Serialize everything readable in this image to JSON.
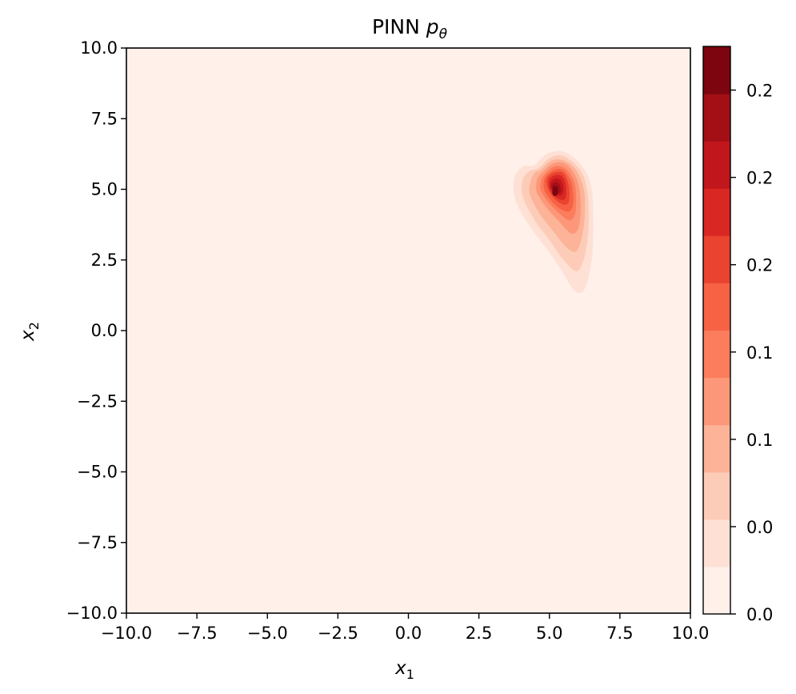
{
  "chart_data": {
    "type": "contour",
    "title": {
      "text": "PINN ",
      "symbol": "p",
      "subscript": "θ"
    },
    "xlabel": {
      "symbol": "x",
      "subscript": "1"
    },
    "ylabel": {
      "symbol": "x",
      "subscript": "2"
    },
    "xlim": [
      -10,
      10
    ],
    "ylim": [
      -10,
      10
    ],
    "xticks": [
      "−10.0",
      "−7.5",
      "−5.0",
      "−2.5",
      "0.0",
      "2.5",
      "5.0",
      "7.5",
      "10.0"
    ],
    "yticks": [
      "−10.0",
      "−7.5",
      "−5.0",
      "−2.5",
      "0.0",
      "2.5",
      "5.0",
      "7.5",
      "10.0"
    ],
    "colormap": "Reds",
    "peak": {
      "x1": 5.2,
      "x2": 4.9
    },
    "colorbar": {
      "range": [
        0,
        0.26
      ],
      "tick_labels": [
        "0.0",
        "0.0",
        "0.1",
        "0.1",
        "0.2",
        "0.2",
        "0.2"
      ],
      "levels": [
        "#fff0ea",
        "#fee1d4",
        "#fdccb8",
        "#fcb398",
        "#fc9879",
        "#fb7d5d",
        "#f66243",
        "#ea4430",
        "#d92723",
        "#c0161c",
        "#a40f16",
        "#7c0510"
      ]
    },
    "contours": [
      {
        "level": 1,
        "points": [
          [
            4.45,
            5.85
          ],
          [
            4.9,
            6.25
          ],
          [
            5.4,
            6.35
          ],
          [
            5.9,
            6.1
          ],
          [
            6.3,
            5.6
          ],
          [
            6.5,
            5.0
          ],
          [
            6.55,
            4.2
          ],
          [
            6.55,
            3.3
          ],
          [
            6.5,
            2.5
          ],
          [
            6.35,
            1.75
          ],
          [
            6.15,
            1.35
          ],
          [
            5.85,
            1.45
          ],
          [
            5.45,
            2.1
          ],
          [
            4.9,
            2.9
          ],
          [
            4.3,
            3.7
          ],
          [
            3.8,
            4.6
          ],
          [
            3.75,
            5.4
          ],
          [
            4.05,
            5.8
          ]
        ]
      },
      {
        "level": 2,
        "points": [
          [
            4.6,
            5.75
          ],
          [
            5.0,
            6.1
          ],
          [
            5.4,
            6.2
          ],
          [
            5.85,
            5.95
          ],
          [
            6.2,
            5.5
          ],
          [
            6.35,
            4.9
          ],
          [
            6.4,
            4.1
          ],
          [
            6.35,
            3.2
          ],
          [
            6.2,
            2.45
          ],
          [
            5.95,
            2.1
          ],
          [
            5.5,
            2.5
          ],
          [
            5.0,
            3.2
          ],
          [
            4.45,
            3.95
          ],
          [
            4.05,
            4.75
          ],
          [
            4.05,
            5.35
          ],
          [
            4.3,
            5.65
          ]
        ]
      },
      {
        "level": 3,
        "points": [
          [
            4.7,
            5.7
          ],
          [
            5.05,
            6.0
          ],
          [
            5.4,
            6.05
          ],
          [
            5.8,
            5.85
          ],
          [
            6.1,
            5.4
          ],
          [
            6.25,
            4.8
          ],
          [
            6.25,
            4.0
          ],
          [
            6.15,
            3.3
          ],
          [
            5.95,
            2.8
          ],
          [
            5.6,
            2.95
          ],
          [
            5.15,
            3.5
          ],
          [
            4.65,
            4.15
          ],
          [
            4.3,
            4.85
          ],
          [
            4.35,
            5.35
          ],
          [
            4.5,
            5.6
          ]
        ]
      },
      {
        "level": 4,
        "points": [
          [
            4.8,
            5.65
          ],
          [
            5.1,
            5.9
          ],
          [
            5.45,
            5.95
          ],
          [
            5.75,
            5.75
          ],
          [
            6.0,
            5.3
          ],
          [
            6.1,
            4.7
          ],
          [
            6.1,
            4.05
          ],
          [
            6.0,
            3.55
          ],
          [
            5.75,
            3.45
          ],
          [
            5.35,
            3.85
          ],
          [
            4.9,
            4.35
          ],
          [
            4.55,
            4.9
          ],
          [
            4.55,
            5.3
          ],
          [
            4.65,
            5.5
          ]
        ]
      },
      {
        "level": 5,
        "points": [
          [
            4.85,
            5.55
          ],
          [
            5.15,
            5.8
          ],
          [
            5.45,
            5.8
          ],
          [
            5.7,
            5.6
          ],
          [
            5.9,
            5.2
          ],
          [
            5.95,
            4.6
          ],
          [
            5.9,
            4.1
          ],
          [
            5.7,
            3.9
          ],
          [
            5.35,
            4.15
          ],
          [
            5.0,
            4.5
          ],
          [
            4.7,
            4.95
          ],
          [
            4.7,
            5.3
          ]
        ]
      },
      {
        "level": 6,
        "points": [
          [
            4.9,
            5.5
          ],
          [
            5.2,
            5.7
          ],
          [
            5.45,
            5.7
          ],
          [
            5.65,
            5.5
          ],
          [
            5.8,
            5.15
          ],
          [
            5.85,
            4.6
          ],
          [
            5.75,
            4.25
          ],
          [
            5.5,
            4.25
          ],
          [
            5.15,
            4.5
          ],
          [
            4.85,
            4.9
          ],
          [
            4.8,
            5.25
          ]
        ]
      },
      {
        "level": 7,
        "points": [
          [
            4.95,
            5.45
          ],
          [
            5.2,
            5.6
          ],
          [
            5.45,
            5.6
          ],
          [
            5.6,
            5.4
          ],
          [
            5.7,
            5.05
          ],
          [
            5.7,
            4.6
          ],
          [
            5.55,
            4.45
          ],
          [
            5.25,
            4.6
          ],
          [
            5.0,
            4.9
          ],
          [
            4.9,
            5.2
          ]
        ]
      },
      {
        "level": 8,
        "points": [
          [
            5.0,
            5.35
          ],
          [
            5.2,
            5.5
          ],
          [
            5.42,
            5.48
          ],
          [
            5.55,
            5.3
          ],
          [
            5.6,
            4.95
          ],
          [
            5.55,
            4.65
          ],
          [
            5.35,
            4.65
          ],
          [
            5.1,
            4.85
          ],
          [
            4.98,
            5.1
          ]
        ]
      },
      {
        "level": 9,
        "points": [
          [
            5.05,
            5.25
          ],
          [
            5.2,
            5.38
          ],
          [
            5.38,
            5.35
          ],
          [
            5.48,
            5.15
          ],
          [
            5.48,
            4.88
          ],
          [
            5.35,
            4.78
          ],
          [
            5.15,
            4.9
          ],
          [
            5.05,
            5.05
          ]
        ]
      },
      {
        "level": 10,
        "points": [
          [
            5.08,
            5.15
          ],
          [
            5.2,
            5.25
          ],
          [
            5.33,
            5.2
          ],
          [
            5.4,
            5.02
          ],
          [
            5.37,
            4.88
          ],
          [
            5.22,
            4.88
          ],
          [
            5.1,
            5.0
          ]
        ]
      },
      {
        "level": 11,
        "points": [
          [
            5.12,
            5.05
          ],
          [
            5.2,
            5.12
          ],
          [
            5.28,
            5.08
          ],
          [
            5.3,
            4.96
          ],
          [
            5.22,
            4.9
          ],
          [
            5.14,
            4.96
          ]
        ]
      }
    ]
  }
}
